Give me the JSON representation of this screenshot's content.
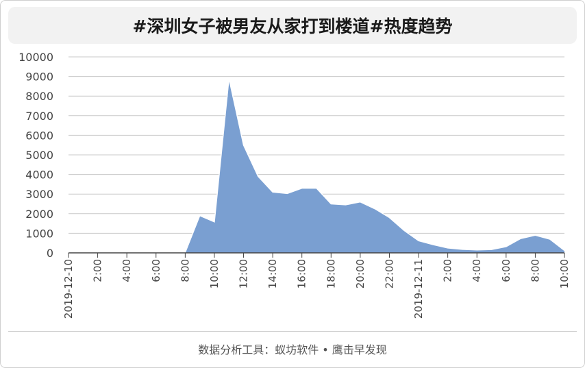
{
  "header": {
    "title": "#深圳女子被男友从家打到楼道#热度趋势"
  },
  "footer": {
    "source": "数据分析工具：蚁坊软件 • 鹰击早发现"
  },
  "chart_data": {
    "type": "area",
    "title": "#深圳女子被男友从家打到楼道#热度趋势",
    "xlabel": "",
    "ylabel": "",
    "ylim": [
      0,
      10000
    ],
    "yticks": [
      0,
      1000,
      2000,
      3000,
      4000,
      5000,
      6000,
      7000,
      8000,
      9000,
      10000
    ],
    "xtick_labels": [
      "2019-12-10",
      "2:00",
      "4:00",
      "6:00",
      "8:00",
      "10:00",
      "12:00",
      "14:00",
      "16:00",
      "18:00",
      "20:00",
      "22:00",
      "2019-12-11",
      "2:00",
      "4:00",
      "6:00",
      "8:00",
      "10:00"
    ],
    "grid": true,
    "fill_color": "#7a9fd1",
    "edge_color": "#ffffff",
    "series": [
      {
        "x": [
          "2019-12-10 0:00",
          "2019-12-10 1:00",
          "2019-12-10 2:00",
          "2019-12-10 3:00",
          "2019-12-10 4:00",
          "2019-12-10 5:00",
          "2019-12-10 6:00",
          "2019-12-10 7:00",
          "2019-12-10 8:00",
          "2019-12-10 9:00",
          "2019-12-10 10:00",
          "2019-12-10 11:00",
          "2019-12-10 12:00",
          "2019-12-10 13:00",
          "2019-12-10 14:00",
          "2019-12-10 15:00",
          "2019-12-10 16:00",
          "2019-12-10 17:00",
          "2019-12-10 18:00",
          "2019-12-10 19:00",
          "2019-12-10 20:00",
          "2019-12-10 21:00",
          "2019-12-10 22:00",
          "2019-12-10 23:00",
          "2019-12-11 0:00",
          "2019-12-11 1:00",
          "2019-12-11 2:00",
          "2019-12-11 3:00",
          "2019-12-11 4:00",
          "2019-12-11 5:00",
          "2019-12-11 6:00",
          "2019-12-11 7:00",
          "2019-12-11 8:00",
          "2019-12-11 9:00",
          "2019-12-11 10:00"
        ],
        "values": [
          0,
          0,
          0,
          0,
          0,
          0,
          20,
          20,
          20,
          1900,
          1580,
          8900,
          5500,
          3900,
          3100,
          3030,
          3300,
          3300,
          2500,
          2450,
          2600,
          2250,
          1800,
          1150,
          620,
          420,
          250,
          180,
          150,
          170,
          320,
          730,
          900,
          700,
          120
        ]
      }
    ]
  }
}
